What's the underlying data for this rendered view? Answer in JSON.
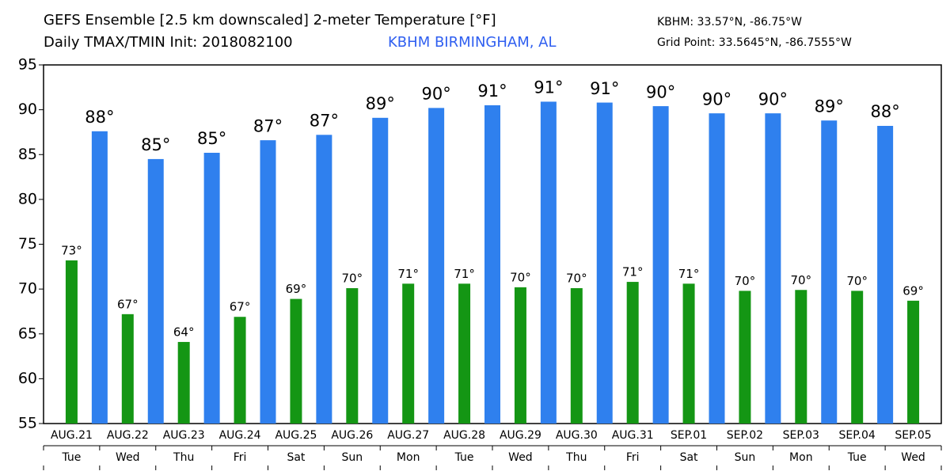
{
  "chart_data": {
    "type": "bar",
    "title": "GEFS Ensemble [2.5 km downscaled] 2-meter Temperature [°F]",
    "subtitle": "Daily TMAX/TMIN Init: 2018082100",
    "location": "KBHM BIRMINGHAM, AL",
    "station_coords": "KBHM: 33.57°N, -86.75°W",
    "grid_point": "Grid Point: 33.5645°N, -86.7555°W",
    "categories": [
      "AUG.21",
      "AUG.22",
      "AUG.23",
      "AUG.24",
      "AUG.25",
      "AUG.26",
      "AUG.27",
      "AUG.28",
      "AUG.29",
      "AUG.30",
      "AUG.31",
      "SEP.01",
      "SEP.02",
      "SEP.03",
      "SEP.04",
      "SEP.05"
    ],
    "weekdays": [
      "Tue",
      "Wed",
      "Thu",
      "Fri",
      "Sat",
      "Sun",
      "Mon",
      "Tue",
      "Wed",
      "Thu",
      "Fri",
      "Sat",
      "Sun",
      "Mon",
      "Tue",
      "Wed"
    ],
    "series": [
      {
        "color": "#149614",
        "values": [
          73.2,
          67.2,
          64.1,
          66.9,
          68.9,
          70.1,
          70.6,
          70.6,
          70.2,
          70.1,
          70.8,
          70.6,
          69.8,
          69.9,
          69.8,
          68.7
        ],
        "value_labels": [
          "73°",
          "67°",
          "64°",
          "67°",
          "69°",
          "70°",
          "71°",
          "71°",
          "70°",
          "70°",
          "71°",
          "71°",
          "70°",
          "70°",
          "70°",
          "69°"
        ]
      },
      {
        "color": "#2f80ee",
        "values": [
          87.6,
          84.5,
          85.2,
          86.6,
          87.2,
          89.1,
          90.2,
          90.5,
          90.9,
          90.8,
          90.4,
          89.6,
          89.6,
          88.8,
          88.2,
          null
        ],
        "value_labels": [
          "88°",
          "85°",
          "85°",
          "87°",
          "87°",
          "89°",
          "90°",
          "91°",
          "91°",
          "91°",
          "90°",
          "90°",
          "90°",
          "89°",
          "88°",
          null
        ]
      }
    ],
    "ylim": [
      55,
      95
    ],
    "yticks": [
      55,
      60,
      65,
      70,
      75,
      80,
      85,
      90,
      95
    ]
  }
}
